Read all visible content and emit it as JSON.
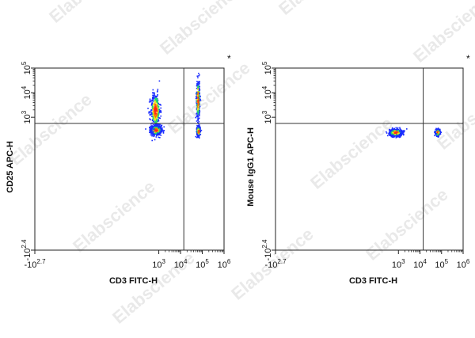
{
  "watermark": "Elabscience",
  "colors": {
    "density_low": "#1a2cff",
    "density_mid": "#27d86a",
    "density_high_1": "#f0e020",
    "density_high_2": "#ff6a00",
    "density_peak": "#ff1e1e",
    "gate_line": "#333333"
  },
  "chart_data": [
    {
      "type": "scatter",
      "corner_mark": "*",
      "xlabel": "CD3 FITC-H",
      "ylabel": "CD25 APC-H",
      "x_ticks": [
        {
          "base": "-10",
          "exp": "2.7",
          "sign": "neg"
        },
        {
          "base": "10",
          "exp": "3"
        },
        {
          "base": "10",
          "exp": "4"
        },
        {
          "base": "10",
          "exp": "5"
        },
        {
          "base": "10",
          "exp": "6"
        }
      ],
      "y_ticks": [
        {
          "base": "-10",
          "exp": "2.4",
          "sign": "neg"
        },
        {
          "base": "10",
          "exp": "3"
        },
        {
          "base": "10",
          "exp": "4"
        },
        {
          "base": "10",
          "exp": "5"
        }
      ],
      "xlim_log10": [
        -2.7,
        6
      ],
      "ylim_log10": [
        -2.4,
        5
      ],
      "gate_x_log10": 4.15,
      "gate_y_log10": 2.75,
      "populations": [
        {
          "name": "CD3- CD25-",
          "cx": 2.85,
          "cy": 2.5,
          "sx": 0.12,
          "sy": 0.1,
          "count": 700
        },
        {
          "name": "CD3- CD25+",
          "cx": 2.82,
          "cy": 3.3,
          "sx": 0.11,
          "sy": 0.35,
          "count": 420
        },
        {
          "name": "CD3+ CD25-",
          "cx": 4.8,
          "cy": 2.45,
          "sx": 0.04,
          "sy": 0.1,
          "count": 260
        },
        {
          "name": "CD3+ CD25+",
          "cx": 4.78,
          "cy": 3.75,
          "sx": 0.04,
          "sy": 0.4,
          "count": 320
        }
      ]
    },
    {
      "type": "scatter",
      "corner_mark": "*",
      "xlabel": "CD3 FITC-H",
      "ylabel": "Mouse IgG1 APC-H",
      "x_ticks": [
        {
          "base": "-10",
          "exp": "2.7",
          "sign": "neg"
        },
        {
          "base": "10",
          "exp": "3"
        },
        {
          "base": "10",
          "exp": "4"
        },
        {
          "base": "10",
          "exp": "5"
        },
        {
          "base": "10",
          "exp": "6"
        }
      ],
      "y_ticks": [
        {
          "base": "-10",
          "exp": "2.4",
          "sign": "neg"
        },
        {
          "base": "10",
          "exp": "3"
        },
        {
          "base": "10",
          "exp": "4"
        },
        {
          "base": "10",
          "exp": "5"
        }
      ],
      "xlim_log10": [
        -2.7,
        6
      ],
      "ylim_log10": [
        -2.4,
        5
      ],
      "gate_x_log10": 4.15,
      "gate_y_log10": 2.75,
      "populations": [
        {
          "name": "CD3- IgG1-",
          "cx": 2.85,
          "cy": 2.4,
          "sx": 0.14,
          "sy": 0.07,
          "count": 750
        },
        {
          "name": "CD3+ IgG1-",
          "cx": 4.8,
          "cy": 2.4,
          "sx": 0.05,
          "sy": 0.07,
          "count": 260
        }
      ]
    }
  ]
}
